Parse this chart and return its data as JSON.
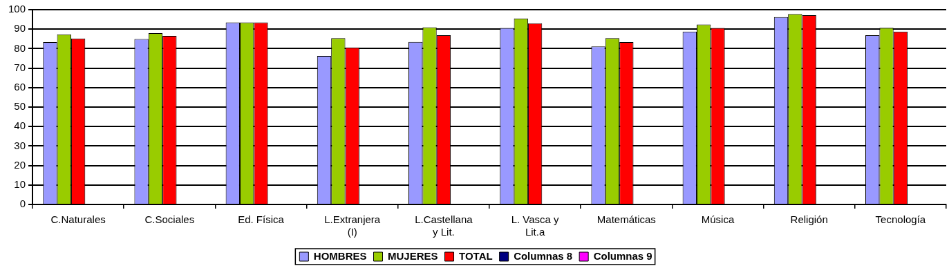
{
  "chart_data": {
    "type": "bar",
    "categories": [
      "C.Naturales",
      "C.Sociales",
      "Ed. Física",
      "L.Extranjera (I)",
      "L.Castellana y Lit.",
      "L. Vasca y Lit.a",
      "Matemáticas",
      "Música",
      "Religión",
      "Tecnología"
    ],
    "series": [
      {
        "name": "HOMBRES",
        "color": "#9999ff",
        "values": [
          83.3,
          84.9,
          93.4,
          76.2,
          83.4,
          90.6,
          81.1,
          88.7,
          96.2,
          86.9
        ]
      },
      {
        "name": "MUJERES",
        "color": "#99cc00",
        "values": [
          87.3,
          87.9,
          93.4,
          85.4,
          91.0,
          95.5,
          85.4,
          92.4,
          97.8,
          90.7
        ]
      },
      {
        "name": "TOTAL",
        "color": "#ff0000",
        "values": [
          85.2,
          86.5,
          93.4,
          80.6,
          86.9,
          93.0,
          83.3,
          90.6,
          97.2,
          88.7
        ]
      },
      {
        "name": "Columnas 8",
        "color": "#000080",
        "values": [
          null,
          null,
          null,
          null,
          null,
          null,
          null,
          null,
          null,
          null
        ]
      },
      {
        "name": "Columnas 9",
        "color": "#ff00ff",
        "values": [
          null,
          null,
          null,
          null,
          null,
          null,
          null,
          null,
          null,
          null
        ]
      }
    ],
    "ylim": [
      0,
      100
    ],
    "yticks": [
      0,
      10,
      20,
      30,
      40,
      50,
      60,
      70,
      80,
      90,
      100
    ],
    "grid": "y",
    "legend": "bottom"
  }
}
